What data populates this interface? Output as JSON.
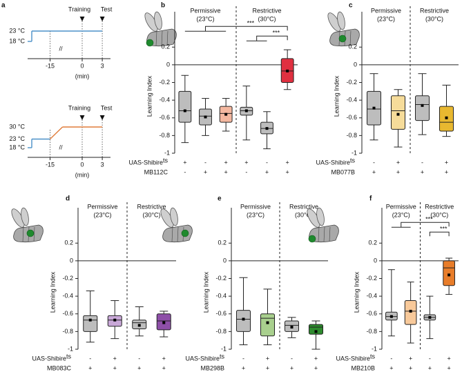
{
  "chart_data": [
    {
      "type": "protocol",
      "label": "a",
      "events": [
        "Training",
        "Test"
      ],
      "xticks": [
        -15,
        0,
        3
      ],
      "xlabel": "(min)",
      "temps": [
        {
          "value": 23,
          "label": "23 °C"
        },
        {
          "value": 18,
          "label": "18 °C"
        }
      ],
      "color": "#4a90c8"
    },
    {
      "type": "protocol",
      "events": [
        "Training",
        "Test"
      ],
      "xticks": [
        -15,
        0,
        3
      ],
      "xlabel": "(min)",
      "temps": [
        {
          "value": 30,
          "label": "30 °C"
        },
        {
          "value": 23,
          "label": "23 °C"
        },
        {
          "value": 18,
          "label": "18 °C"
        }
      ],
      "color": "#4a90c8",
      "heat_color": "#e07b39"
    },
    {
      "type": "box",
      "label": "b",
      "ylabel": "Learning Index",
      "ylim": [
        -1,
        0.6
      ],
      "yticks": [
        -1,
        -0.8,
        -0.6,
        -0.4,
        -0.2,
        0,
        0.2
      ],
      "groups": [
        {
          "name": "Permissive",
          "temp": "(23°C)"
        },
        {
          "name": "Restrictive",
          "temp": "(30°C)"
        }
      ],
      "boxes": [
        {
          "min": -0.88,
          "q1": -0.65,
          "median": -0.52,
          "q3": -0.3,
          "max": -0.12,
          "mean": -0.52,
          "color": "#bdbdbd"
        },
        {
          "min": -0.8,
          "q1": -0.68,
          "median": -0.58,
          "q3": -0.5,
          "max": -0.38,
          "mean": -0.59,
          "color": "#bdbdbd"
        },
        {
          "min": -0.75,
          "q1": -0.65,
          "median": -0.55,
          "q3": -0.47,
          "max": -0.38,
          "mean": -0.56,
          "color": "#f4b8a0"
        },
        {
          "min": -0.85,
          "q1": -0.57,
          "median": -0.52,
          "q3": -0.48,
          "max": -0.24,
          "mean": -0.52,
          "color": "#bdbdbd"
        },
        {
          "min": -0.95,
          "q1": -0.78,
          "median": -0.72,
          "q3": -0.65,
          "max": -0.53,
          "mean": -0.72,
          "color": "#bdbdbd"
        },
        {
          "min": -0.28,
          "q1": -0.2,
          "median": -0.07,
          "q3": 0.07,
          "max": 0.17,
          "mean": -0.07,
          "color": "#e03040"
        }
      ],
      "genotypes": [
        {
          "name": "UAS-Shibire",
          "sup": "ts",
          "marks": [
            "+",
            "-",
            "+",
            "+",
            "-",
            "+"
          ]
        },
        {
          "name": "MB112C",
          "marks": [
            "-",
            "+",
            "+",
            "-",
            "+",
            "+"
          ]
        }
      ],
      "significance": [
        "***",
        "***"
      ]
    },
    {
      "type": "box",
      "label": "c",
      "ylabel": "Learning Index",
      "ylim": [
        -1,
        0.6
      ],
      "yticks": [
        -1,
        -0.8,
        -0.6,
        -0.4,
        -0.2,
        0,
        0.2
      ],
      "groups": [
        {
          "name": "Permissive",
          "temp": "(23°C)"
        },
        {
          "name": "Restrictive",
          "temp": "(30°C)"
        }
      ],
      "boxes": [
        {
          "min": -0.85,
          "q1": -0.68,
          "median": -0.5,
          "q3": -0.3,
          "max": -0.1,
          "mean": -0.49,
          "color": "#bdbdbd"
        },
        {
          "min": -0.93,
          "q1": -0.73,
          "median": -0.52,
          "q3": -0.35,
          "max": -0.28,
          "mean": -0.56,
          "color": "#f6dc9a"
        },
        {
          "min": -0.79,
          "q1": -0.63,
          "median": -0.45,
          "q3": -0.35,
          "max": -0.1,
          "mean": -0.46,
          "color": "#bdbdbd"
        },
        {
          "min": -0.81,
          "q1": -0.75,
          "median": -0.65,
          "q3": -0.47,
          "max": -0.23,
          "mean": -0.6,
          "color": "#e8b830"
        }
      ],
      "genotypes": [
        {
          "name": "UAS-Shibire",
          "sup": "ts",
          "marks": [
            "-",
            "+",
            "-",
            "+"
          ]
        },
        {
          "name": "MB077B",
          "marks": [
            "+",
            "+",
            "+",
            "+"
          ]
        }
      ]
    },
    {
      "type": "box",
      "label": "d",
      "ylabel": "Learning Index",
      "ylim": [
        -1,
        0.6
      ],
      "yticks": [
        -1,
        -0.8,
        -0.6,
        -0.4,
        -0.2,
        0,
        0.2
      ],
      "groups": [
        {
          "name": "Permissive",
          "temp": "(23°C)"
        },
        {
          "name": "Restrictive",
          "temp": "(30°C)"
        }
      ],
      "boxes": [
        {
          "min": -0.92,
          "q1": -0.8,
          "median": -0.67,
          "q3": -0.62,
          "max": -0.34,
          "mean": -0.67,
          "color": "#bdbdbd"
        },
        {
          "min": -0.88,
          "q1": -0.74,
          "median": -0.67,
          "q3": -0.62,
          "max": -0.45,
          "mean": -0.67,
          "color": "#c9a8d8"
        },
        {
          "min": -0.85,
          "q1": -0.77,
          "median": -0.7,
          "q3": -0.67,
          "max": -0.52,
          "mean": -0.73,
          "color": "#bdbdbd"
        },
        {
          "min": -0.86,
          "q1": -0.78,
          "median": -0.68,
          "q3": -0.6,
          "max": -0.57,
          "mean": -0.7,
          "color": "#8e4fa8"
        }
      ],
      "genotypes": [
        {
          "name": "UAS-Shibire",
          "sup": "ts",
          "marks": [
            "-",
            "+",
            "-",
            "+"
          ]
        },
        {
          "name": "MB083C",
          "marks": [
            "+",
            "+",
            "+",
            "+"
          ]
        }
      ]
    },
    {
      "type": "box",
      "label": "e",
      "ylabel": "Learning Index",
      "ylim": [
        -1,
        0.6
      ],
      "yticks": [
        -1,
        -0.8,
        -0.6,
        -0.4,
        -0.2,
        0,
        0.2
      ],
      "groups": [
        {
          "name": "Permissive",
          "temp": "(23°C)"
        },
        {
          "name": "Restrictive",
          "temp": "(30°C)"
        }
      ],
      "boxes": [
        {
          "min": -0.95,
          "q1": -0.8,
          "median": -0.66,
          "q3": -0.56,
          "max": -0.19,
          "mean": -0.66,
          "color": "#bdbdbd"
        },
        {
          "min": -0.95,
          "q1": -0.85,
          "median": -0.65,
          "q3": -0.6,
          "max": -0.32,
          "mean": -0.7,
          "color": "#a9d08e"
        },
        {
          "min": -0.87,
          "q1": -0.8,
          "median": -0.73,
          "q3": -0.68,
          "max": -0.64,
          "mean": -0.75,
          "color": "#bdbdbd"
        },
        {
          "min": -1,
          "q1": -0.83,
          "median": -0.75,
          "q3": -0.72,
          "max": -0.68,
          "mean": -0.8,
          "color": "#2e8b2e"
        }
      ],
      "genotypes": [
        {
          "name": "UAS-Shibire",
          "sup": "ts",
          "marks": [
            "-",
            "+",
            "-",
            "+"
          ]
        },
        {
          "name": "MB298B",
          "marks": [
            "+",
            "+",
            "+",
            "+"
          ]
        }
      ]
    },
    {
      "type": "box",
      "label": "f",
      "ylabel": "Learning Index",
      "ylim": [
        -1,
        0.6
      ],
      "yticks": [
        -1,
        -0.8,
        -0.6,
        -0.4,
        -0.2,
        0,
        0.2
      ],
      "groups": [
        {
          "name": "Permissive",
          "temp": "(23°C)"
        },
        {
          "name": "Restrictive",
          "temp": "(30°C)"
        }
      ],
      "boxes": [
        {
          "min": -0.85,
          "q1": -0.67,
          "median": -0.63,
          "q3": -0.58,
          "max": -0.1,
          "mean": -0.63,
          "color": "#bdbdbd"
        },
        {
          "min": -0.93,
          "q1": -0.72,
          "median": -0.57,
          "q3": -0.45,
          "max": -0.24,
          "mean": -0.57,
          "color": "#f8c99a"
        },
        {
          "min": -0.88,
          "q1": -0.67,
          "median": -0.64,
          "q3": -0.61,
          "max": -0.4,
          "mean": -0.64,
          "color": "#bdbdbd"
        },
        {
          "min": -0.38,
          "q1": -0.28,
          "median": -0.08,
          "q3": 0,
          "max": 0.03,
          "mean": -0.16,
          "color": "#e87d2a"
        }
      ],
      "genotypes": [
        {
          "name": "UAS-Shibire",
          "sup": "ts",
          "marks": [
            "-",
            "+",
            "-",
            "+"
          ]
        },
        {
          "name": "MB210B",
          "marks": [
            "+",
            "+",
            "+",
            "+"
          ]
        }
      ],
      "significance": [
        "***",
        "***"
      ]
    }
  ]
}
